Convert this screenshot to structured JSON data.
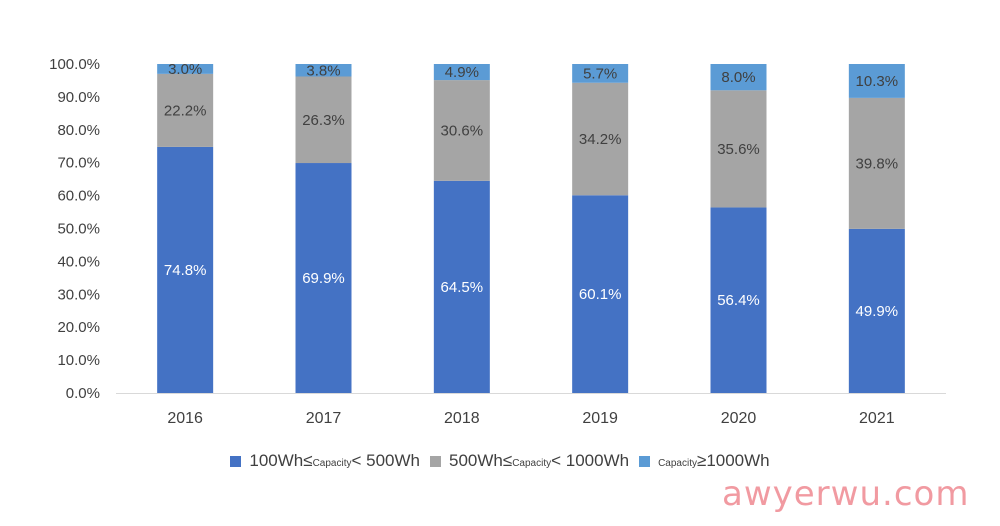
{
  "chart_data": {
    "type": "bar",
    "stacked": true,
    "categories": [
      "2016",
      "2017",
      "2018",
      "2019",
      "2020",
      "2021"
    ],
    "series": [
      {
        "name": "100Wh≤Capacity<500Wh",
        "color": "#4472C4",
        "label_color": "#ffffff",
        "values": [
          74.8,
          69.9,
          64.5,
          60.1,
          56.4,
          49.9
        ],
        "labels": [
          "74.8%",
          "69.9%",
          "64.5%",
          "60.1%",
          "56.4%",
          "49.9%"
        ]
      },
      {
        "name": "500Wh≤Capacity<1000Wh",
        "color": "#A5A5A5",
        "label_color": "#404040",
        "values": [
          22.2,
          26.3,
          30.6,
          34.2,
          35.6,
          39.8
        ],
        "labels": [
          "22.2%",
          "26.3%",
          "30.6%",
          "34.2%",
          "35.6%",
          "39.8%"
        ]
      },
      {
        "name": "Capacity≥1000Wh",
        "color": "#5B9BD5",
        "label_color": "#404040",
        "values": [
          3.0,
          3.8,
          4.9,
          5.7,
          8.0,
          10.3
        ],
        "labels": [
          "3.0%",
          "3.8%",
          "4.9%",
          "5.7%",
          "8.0%",
          "10.3%"
        ]
      }
    ],
    "yticks": [
      "0.0%",
      "10.0%",
      "20.0%",
      "30.0%",
      "40.0%",
      "50.0%",
      "60.0%",
      "70.0%",
      "80.0%",
      "90.0%",
      "100.0%"
    ],
    "ylim": [
      0,
      100
    ],
    "grid": false,
    "legend_position": "bottom"
  },
  "legend": {
    "items": [
      {
        "prefix": "100Wh≤",
        "small": "Capacity",
        "suffix": "< 500Wh",
        "color": "#4472C4"
      },
      {
        "prefix": "500Wh≤",
        "small": "Capacity",
        "suffix": "< 1000Wh",
        "color": "#A5A5A5"
      },
      {
        "prefix": "",
        "small": "Capacity",
        "suffix": "≥1000Wh",
        "color": "#5B9BD5"
      }
    ]
  },
  "watermark": "awyerwu.com"
}
